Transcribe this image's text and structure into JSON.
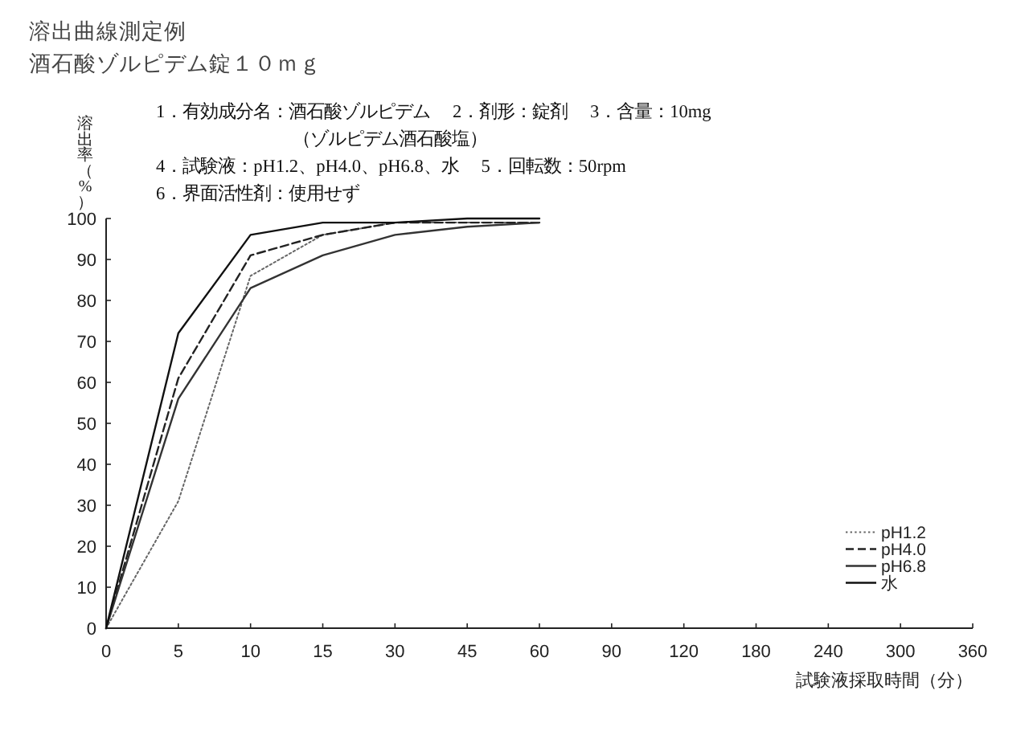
{
  "chart_data": {
    "type": "line",
    "title": "溶出曲線測定例",
    "subtitle": "酒石酸ゾルピデム錠１０ｍｇ",
    "annotations": [
      "1．有効成分名：酒石酸ゾルピデム　 2．剤形：錠剤　 3．含量：10mg",
      "（ゾルピデム酒石酸塩）",
      "4．試験液：pH1.2、pH4.0、pH6.8、水　 5．回転数：50rpm",
      "6．界面活性剤：使用せず"
    ],
    "xlabel": "試験液採取時間（分）",
    "ylabel": "溶出率（%）",
    "categories": [
      "0",
      "5",
      "10",
      "15",
      "30",
      "45",
      "60",
      "90",
      "120",
      "180",
      "240",
      "300",
      "360"
    ],
    "ylim": [
      0,
      100
    ],
    "yticks": [
      0,
      10,
      20,
      30,
      40,
      50,
      60,
      70,
      80,
      90,
      100
    ],
    "legend": "bottom right",
    "series": [
      {
        "name": "pH1.2",
        "color": "#666666",
        "line_style": "dotted",
        "values": [
          0,
          31,
          86,
          96,
          99,
          99,
          99,
          null,
          null,
          null,
          null,
          null,
          null
        ]
      },
      {
        "name": "pH4.0",
        "color": "#222222",
        "line_style": "dashed",
        "values": [
          0,
          61,
          91,
          96,
          99,
          99,
          99,
          null,
          null,
          null,
          null,
          null,
          null
        ]
      },
      {
        "name": "pH6.8",
        "color": "#333333",
        "line_style": "solid",
        "values": [
          0,
          56,
          83,
          91,
          96,
          98,
          99,
          null,
          null,
          null,
          null,
          null,
          null
        ]
      },
      {
        "name": "水",
        "color": "#111111",
        "line_style": "solid",
        "values": [
          0,
          72,
          96,
          99,
          99,
          100,
          100,
          null,
          null,
          null,
          null,
          null,
          null
        ]
      }
    ]
  }
}
